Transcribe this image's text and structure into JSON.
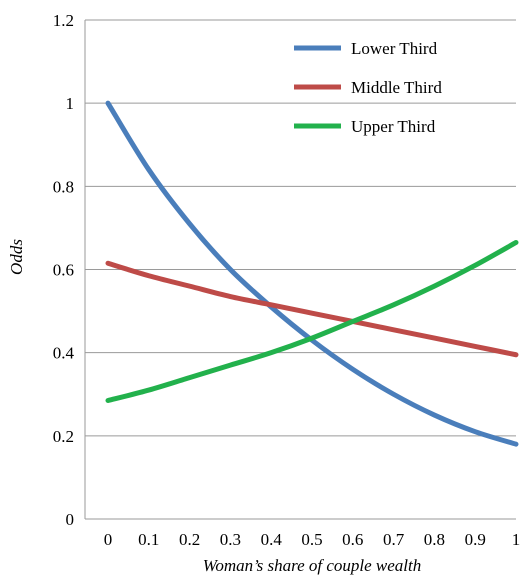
{
  "chart_data": {
    "type": "line",
    "title": "",
    "xlabel": "Woman’s share of couple wealth",
    "ylabel": "Odds",
    "x": [
      0,
      0.1,
      0.2,
      0.3,
      0.4,
      0.5,
      0.6,
      0.7,
      0.8,
      0.9,
      1
    ],
    "x_tick_labels": [
      "0",
      "0.1",
      "0.2",
      "0.3",
      "0.4",
      "0.5",
      "0.6",
      "0.7",
      "0.8",
      "0.9",
      "1"
    ],
    "y_ticks": [
      0,
      0.2,
      0.4,
      0.6,
      0.8,
      1,
      1.2
    ],
    "y_tick_labels": [
      "0",
      "0.2",
      "0.4",
      "0.6",
      "0.8",
      "1",
      "1.2"
    ],
    "xlim": [
      0,
      1
    ],
    "ylim": [
      0,
      1.2
    ],
    "grid": true,
    "legend_position": "top-right",
    "series": [
      {
        "name": "Lower Third",
        "color": "#4a7ebb",
        "values": [
          1.0,
          0.84,
          0.71,
          0.6,
          0.51,
          0.43,
          0.36,
          0.3,
          0.25,
          0.21,
          0.18
        ]
      },
      {
        "name": "Middle Third",
        "color": "#be4b48",
        "values": [
          0.615,
          0.585,
          0.56,
          0.535,
          0.515,
          0.495,
          0.475,
          0.455,
          0.435,
          0.415,
          0.395
        ]
      },
      {
        "name": "Upper Third",
        "color": "#22b14c",
        "values": [
          0.285,
          0.31,
          0.34,
          0.37,
          0.4,
          0.435,
          0.475,
          0.515,
          0.56,
          0.61,
          0.665
        ]
      }
    ]
  }
}
